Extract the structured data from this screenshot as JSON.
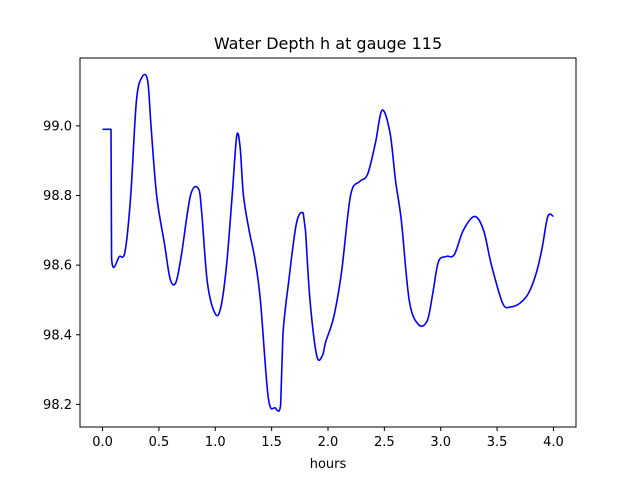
{
  "chart_data": {
    "type": "line",
    "title": "Water Depth h at gauge 115",
    "xlabel": "hours",
    "ylabel": "",
    "xlim": [
      -0.2,
      4.2
    ],
    "ylim": [
      98.135,
      99.195
    ],
    "xticks": [
      0.0,
      0.5,
      1.0,
      1.5,
      2.0,
      2.5,
      3.0,
      3.5,
      4.0
    ],
    "xtick_labels": [
      "0.0",
      "0.5",
      "1.0",
      "1.5",
      "2.0",
      "2.5",
      "3.0",
      "3.5",
      "4.0"
    ],
    "yticks": [
      98.2,
      98.4,
      98.6,
      98.8,
      99.0
    ],
    "ytick_labels": [
      "98.2",
      "98.4",
      "98.6",
      "98.8",
      "99.0"
    ],
    "grid": false,
    "legend": "none",
    "series": [
      {
        "color": "#0000ff",
        "x": [
          0.0,
          0.07,
          0.075,
          0.08,
          0.15,
          0.2,
          0.25,
          0.3,
          0.35,
          0.4,
          0.43,
          0.48,
          0.55,
          0.6,
          0.65,
          0.7,
          0.78,
          0.85,
          0.88,
          0.93,
          1.0,
          1.05,
          1.1,
          1.15,
          1.19,
          1.22,
          1.25,
          1.3,
          1.35,
          1.4,
          1.47,
          1.53,
          1.58,
          1.6,
          1.65,
          1.72,
          1.78,
          1.8,
          1.84,
          1.9,
          1.95,
          1.98,
          2.05,
          2.12,
          2.2,
          2.28,
          2.35,
          2.42,
          2.48,
          2.55,
          2.6,
          2.65,
          2.72,
          2.8,
          2.88,
          2.93,
          2.98,
          3.05,
          3.12,
          3.2,
          3.3,
          3.38,
          3.45,
          3.55,
          3.62,
          3.7,
          3.78,
          3.85,
          3.9,
          3.95,
          4.0
        ],
        "y": [
          98.99,
          98.99,
          98.99,
          98.62,
          98.625,
          98.64,
          98.8,
          99.07,
          99.14,
          99.13,
          99.0,
          98.8,
          98.66,
          98.56,
          98.55,
          98.63,
          98.8,
          98.82,
          98.75,
          98.55,
          98.46,
          98.48,
          98.6,
          98.8,
          98.97,
          98.94,
          98.8,
          98.7,
          98.62,
          98.5,
          98.22,
          98.19,
          98.2,
          98.4,
          98.55,
          98.72,
          98.75,
          98.7,
          98.5,
          98.34,
          98.34,
          98.38,
          98.45,
          98.58,
          98.8,
          98.84,
          98.86,
          98.95,
          99.045,
          98.98,
          98.84,
          98.73,
          98.5,
          98.43,
          98.44,
          98.52,
          98.61,
          98.625,
          98.63,
          98.7,
          98.74,
          98.7,
          98.6,
          98.49,
          98.48,
          98.49,
          98.52,
          98.58,
          98.65,
          98.74,
          98.74
        ]
      }
    ]
  }
}
